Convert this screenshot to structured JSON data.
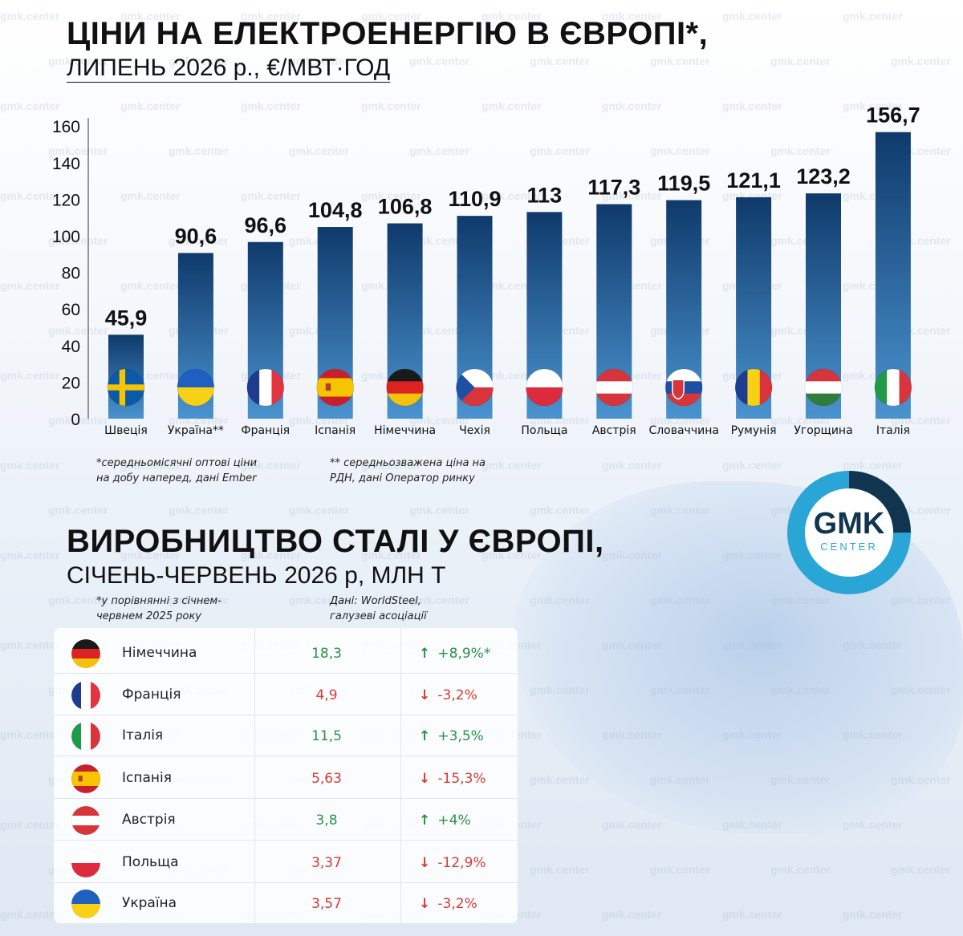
{
  "chart_data": {
    "type": "bar",
    "title": "ЦІНИ НА ЕЛЕКТРОЕНЕРГІЮ В ЄВРОПІ*,",
    "subtitle": "ЛИПЕНЬ 2026 р., €/МВТ·ГОД",
    "categories": [
      "Швеція",
      "Україна**",
      "Франція",
      "Іспанія",
      "Німеччина",
      "Чехія",
      "Польща",
      "Австрія",
      "Словаччина",
      "Румунія",
      "Угорщина",
      "Італія"
    ],
    "values": [
      45.9,
      90.6,
      96.6,
      104.8,
      106.8,
      110.9,
      113,
      117.3,
      119.5,
      121.1,
      123.2,
      156.7
    ],
    "value_labels": [
      "45,9",
      "90,6",
      "96,6",
      "104,8",
      "106,8",
      "110,9",
      "113",
      "117,3",
      "119,5",
      "121,1",
      "123,2",
      "156,7"
    ],
    "flags": [
      "se",
      "ua",
      "fr",
      "es",
      "de",
      "cz",
      "pl",
      "at",
      "sk",
      "ro",
      "hu",
      "it"
    ],
    "yticks": [
      0,
      20,
      40,
      60,
      80,
      100,
      120,
      140,
      160
    ],
    "ylim": [
      0,
      160
    ],
    "grid": false,
    "colors": {
      "bar_top": "#0f3a6b",
      "bar_bottom": "#4a93cf"
    }
  },
  "notes": {
    "note1_line1": "*середньомісячні оптові ціни",
    "note1_line2": "на добу наперед, дані Ember",
    "note2_line1": "** середньозважена ціна на",
    "note2_line2": "РДН, дані Оператор ринку"
  },
  "steel": {
    "title": "ВИРОБНИЦТВО СТАЛІ У ЄВРОПІ,",
    "subtitle": "СІЧЕНЬ-ЧЕРВЕНЬ 2026 р, МЛН Т",
    "note_left_1": "*у порівнянні з січнем-",
    "note_left_2": "червнем 2025 року",
    "note_right_1": "Дані: WorldSteel,",
    "note_right_2": "галузеві асоціації",
    "rows": [
      {
        "flag": "de",
        "country": "Німеччина",
        "value": "18,3",
        "direction": "up",
        "change": "+8,9%*"
      },
      {
        "flag": "fr",
        "country": "Франція",
        "value": "4,9",
        "direction": "down",
        "change": "-3,2%"
      },
      {
        "flag": "it",
        "country": "Італія",
        "value": "11,5",
        "direction": "up",
        "change": "+3,5%"
      },
      {
        "flag": "es",
        "country": "Іспанія",
        "value": "5,63",
        "direction": "down",
        "change": "-15,3%"
      },
      {
        "flag": "at",
        "country": "Австрія",
        "value": "3,8",
        "direction": "up",
        "change": "+4%"
      },
      {
        "flag": "pl",
        "country": "Польща",
        "value": "3,37",
        "direction": "down",
        "change": "-12,9%"
      },
      {
        "flag": "ua",
        "country": "Україна",
        "value": "3,57",
        "direction": "down",
        "change": "-3,2%"
      }
    ]
  },
  "logo": {
    "line1": "GMK",
    "line2": "CENTER"
  },
  "watermark": "gmk.center"
}
